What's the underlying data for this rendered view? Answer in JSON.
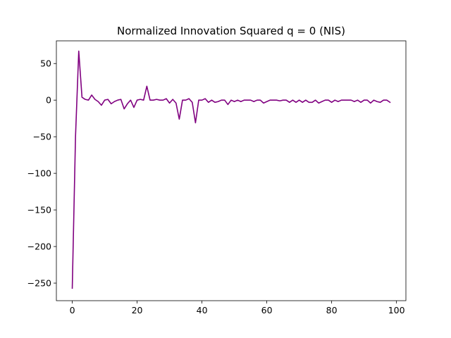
{
  "chart_data": {
    "type": "line",
    "title": "Normalized Innovation Squared q = 0 (NIS)",
    "xlabel": "",
    "ylabel": "",
    "xlim": [
      -4.9,
      102.9
    ],
    "ylim": [
      -274.0,
      81.0
    ],
    "xticks": [
      0,
      20,
      40,
      60,
      80,
      100
    ],
    "yticks": [
      -250,
      -200,
      -150,
      -100,
      -50,
      0,
      50
    ],
    "tick_labels_x": [
      "0",
      "20",
      "40",
      "60",
      "80",
      "100"
    ],
    "tick_labels_y": [
      "−250",
      "−200",
      "−150",
      "−100",
      "−50",
      "0",
      "50"
    ],
    "grid": false,
    "legend": "none",
    "series": [
      {
        "color": "#800080",
        "x": [
          0,
          1,
          2,
          3,
          4,
          5,
          6,
          7,
          8,
          9,
          10,
          11,
          12,
          13,
          14,
          15,
          16,
          17,
          18,
          19,
          20,
          21,
          22,
          23,
          24,
          25,
          26,
          27,
          28,
          29,
          30,
          31,
          32,
          33,
          34,
          35,
          36,
          37,
          38,
          39,
          40,
          41,
          42,
          43,
          44,
          45,
          46,
          47,
          48,
          49,
          50,
          51,
          52,
          53,
          54,
          55,
          56,
          57,
          58,
          59,
          60,
          61,
          62,
          63,
          64,
          65,
          66,
          67,
          68,
          69,
          70,
          71,
          72,
          73,
          74,
          75,
          76,
          77,
          78,
          79,
          80,
          81,
          82,
          83,
          84,
          85,
          86,
          87,
          88,
          89,
          90,
          91,
          92,
          93,
          94,
          95,
          96,
          97,
          98
        ],
        "values": [
          -257,
          -50,
          67,
          4,
          1,
          0,
          7,
          1,
          -2,
          -7,
          0,
          1,
          -5,
          -2,
          0,
          1,
          -12,
          -5,
          0,
          -10,
          0,
          1,
          0,
          19,
          0,
          0,
          1,
          0,
          0,
          2,
          -4,
          1,
          -4,
          -26,
          0,
          0,
          2,
          -3,
          -31,
          0,
          0,
          2,
          -3,
          0,
          -3,
          -2,
          0,
          0,
          -6,
          0,
          -2,
          0,
          -2,
          0,
          0,
          0,
          -2,
          0,
          0,
          -4,
          -2,
          0,
          0,
          0,
          -1,
          0,
          0,
          -3,
          0,
          -3,
          0,
          -3,
          0,
          -3,
          -3,
          0,
          -4,
          -2,
          0,
          0,
          -3,
          0,
          -2,
          0,
          0,
          0,
          0,
          -2,
          0,
          -3,
          0,
          0,
          -4,
          0,
          -2,
          -3,
          0,
          0,
          -3
        ]
      }
    ]
  }
}
